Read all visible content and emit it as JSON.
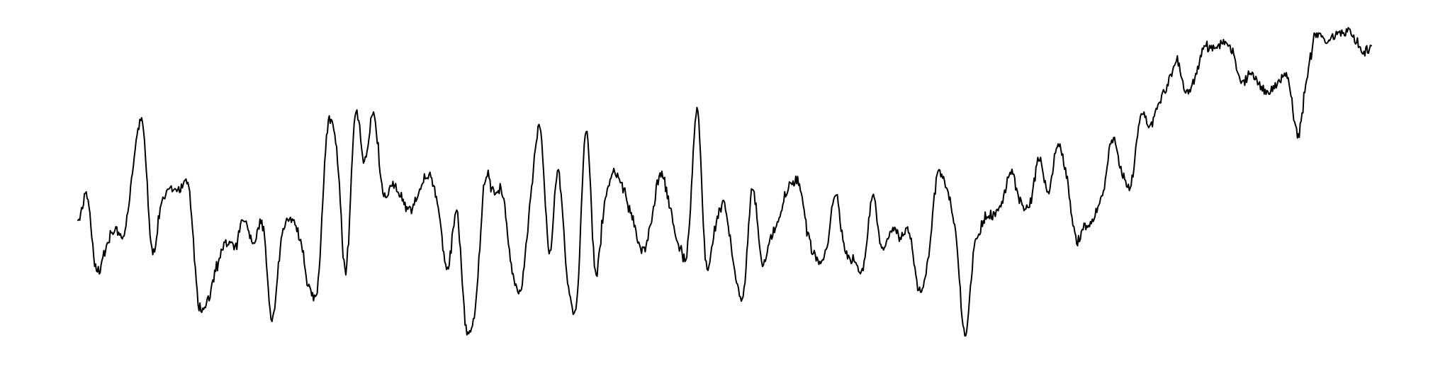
{
  "chart_data": {
    "type": "line",
    "title": "",
    "xlabel": "",
    "ylabel": "",
    "axes_visible": false,
    "grid": false,
    "legend": "none",
    "xlim": [
      0,
      140
    ],
    "ylim": [
      -4.2,
      6.5
    ],
    "series": [
      {
        "color": "#000000",
        "x": [
          0,
          1,
          2,
          3,
          4,
          5,
          6,
          7,
          8,
          9,
          10,
          11,
          12,
          13,
          14,
          15,
          16,
          17,
          18,
          19,
          20,
          21,
          22,
          23,
          24,
          25,
          26,
          27,
          28,
          29,
          30,
          31,
          32,
          33,
          34,
          35,
          36,
          37,
          38,
          39,
          40,
          41,
          42,
          43,
          44,
          45,
          46,
          47,
          48,
          49,
          50,
          51,
          52,
          53,
          54,
          55,
          56,
          57,
          58,
          59,
          60,
          61,
          62,
          63,
          64,
          65,
          66,
          67,
          68,
          69,
          70,
          71,
          72,
          73,
          74,
          75,
          76,
          77,
          78,
          79,
          80,
          81,
          82,
          83,
          84,
          85,
          86,
          87,
          88,
          89,
          90,
          91,
          92,
          93,
          94,
          95,
          96,
          97,
          98,
          99,
          100,
          101,
          102,
          103,
          104,
          105,
          106,
          107,
          108,
          109,
          110,
          111,
          112,
          113,
          114,
          115,
          116,
          117,
          118,
          119,
          120,
          121,
          122,
          123,
          124,
          125,
          126,
          127,
          128,
          129,
          130,
          131,
          132,
          133,
          134,
          135,
          136,
          137,
          138,
          139,
          140
        ],
        "values": [
          0.0,
          0.8,
          -1.7,
          -0.9,
          -0.3,
          -0.5,
          1.8,
          3.2,
          -1.0,
          0.5,
          1.0,
          1.0,
          1.1,
          -2.6,
          -2.7,
          -1.5,
          -0.7,
          -0.9,
          0.1,
          -0.8,
          -0.1,
          -3.3,
          -0.6,
          0.0,
          -0.6,
          -2.2,
          -2.0,
          3.0,
          2.3,
          -1.7,
          3.5,
          1.9,
          3.5,
          0.9,
          1.1,
          0.8,
          0.3,
          1.0,
          1.5,
          0.4,
          -1.7,
          0.3,
          -3.5,
          -2.9,
          1.2,
          0.9,
          0.8,
          -1.7,
          -2.2,
          0.8,
          3.0,
          -1.0,
          1.6,
          -2.0,
          -2.7,
          3.0,
          -1.6,
          0.5,
          1.6,
          1.0,
          0.1,
          -1.0,
          -0.2,
          1.5,
          0.5,
          -0.8,
          -0.9,
          3.6,
          -1.4,
          -0.2,
          0.5,
          -1.5,
          -2.5,
          1.0,
          -1.3,
          -0.6,
          0.2,
          1.1,
          1.2,
          -0.4,
          -1.3,
          -0.9,
          0.9,
          -1.0,
          -1.3,
          -1.6,
          0.8,
          -1.0,
          -0.3,
          -0.6,
          -0.4,
          -2.3,
          -1.4,
          1.5,
          1.0,
          -0.5,
          -3.8,
          -1.0,
          -0.1,
          0.2,
          0.5,
          1.6,
          0.6,
          0.5,
          2.0,
          0.9,
          2.4,
          1.5,
          -0.6,
          -0.2,
          0.1,
          1.0,
          2.7,
          1.5,
          1.2,
          3.4,
          3.1,
          3.8,
          4.5,
          5.2,
          4.1,
          4.8,
          5.7,
          5.6,
          5.8,
          5.5,
          4.5,
          4.8,
          4.4,
          4.2,
          4.5,
          4.6,
          2.8,
          4.6,
          6.1,
          5.8,
          6.0,
          6.2,
          6.0,
          5.5,
          5.7
        ]
      }
    ]
  }
}
